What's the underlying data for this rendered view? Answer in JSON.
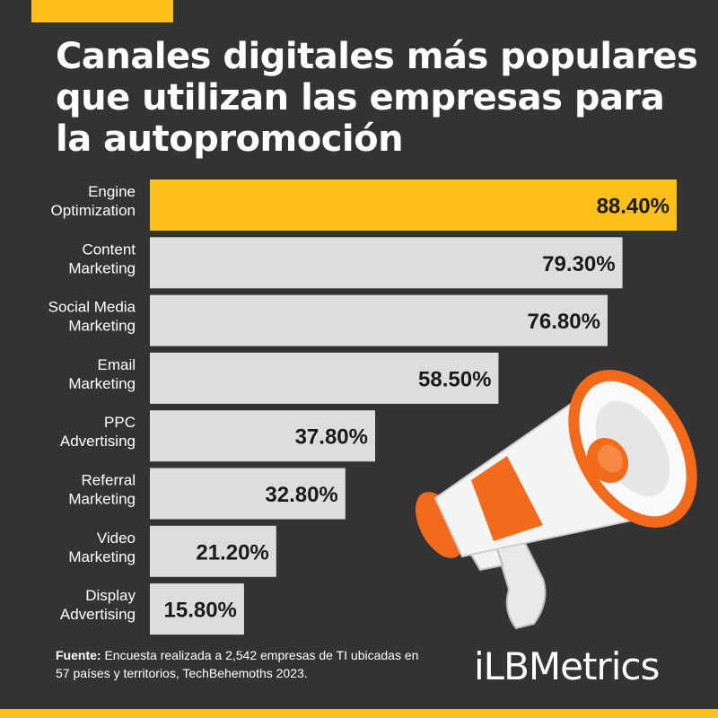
{
  "title": "Canales digitales más populares que utilizan las empresas para la autopromoción",
  "source": {
    "label": "Fuente:",
    "text": "Encuesta realizada a 2,542 empresas de TI ubicadas en 57 países y territorios, TechBehemoths 2023."
  },
  "brand": "iLBMetrics",
  "colors": {
    "background": "#333333",
    "accent": "#FDC01A",
    "bar": "#DDDDDD",
    "highlight_bar": "#FDC01A",
    "megaphone_orange": "#F26A1B"
  },
  "chart_data": {
    "type": "bar",
    "orientation": "horizontal",
    "categories": [
      [
        "Engine",
        "Optimization"
      ],
      [
        "Content",
        "Marketing"
      ],
      [
        "Social Media",
        "Marketing"
      ],
      [
        "Email",
        "Marketing"
      ],
      [
        "PPC",
        "Advertising"
      ],
      [
        "Referral",
        "Marketing"
      ],
      [
        "Video",
        "Marketing"
      ],
      [
        "Display",
        "Advertising"
      ]
    ],
    "values": [
      88.4,
      79.3,
      76.8,
      58.5,
      37.8,
      32.8,
      21.2,
      15.8
    ],
    "value_labels": [
      "88.40%",
      "79.30%",
      "76.80%",
      "58.50%",
      "37.80%",
      "32.80%",
      "21.20%",
      "15.80%"
    ],
    "highlight_index": 0,
    "xlim": [
      0,
      100
    ],
    "grid": false,
    "legend": "none"
  },
  "illustration": {
    "icon": "megaphone-icon"
  }
}
